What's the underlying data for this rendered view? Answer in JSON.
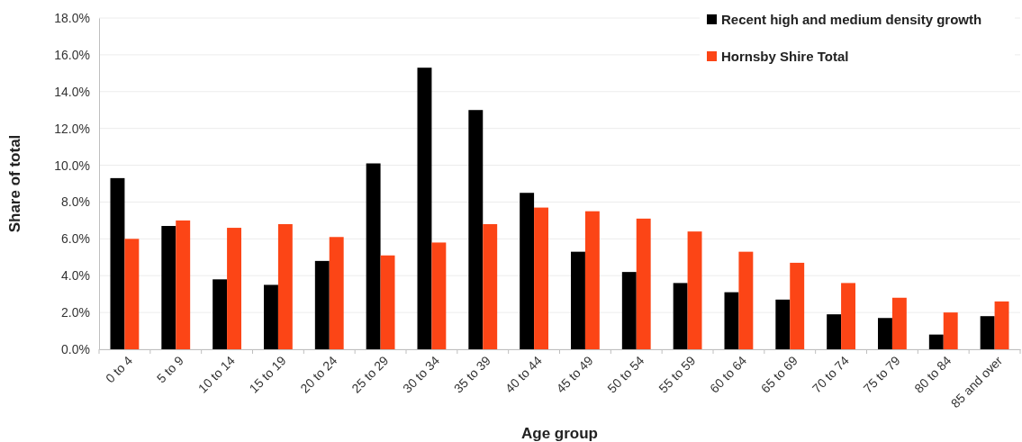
{
  "chart_data": {
    "type": "bar",
    "xlabel": "Age group",
    "ylabel": "Share of total",
    "categories": [
      "0 to 4",
      "5 to 9",
      "10 to 14",
      "15 to 19",
      "20 to 24",
      "25 to 29",
      "30 to 34",
      "35 to 39",
      "40 to 44",
      "45 to 49",
      "50 to 54",
      "55 to 59",
      "60 to 64",
      "65 to 69",
      "70 to 74",
      "75 to 79",
      "80 to 84",
      "85 and over"
    ],
    "series": [
      {
        "name": "Recent high and medium density growth",
        "color": "#000000",
        "values": [
          9.3,
          6.7,
          3.8,
          3.5,
          4.8,
          10.1,
          15.3,
          13.0,
          8.5,
          5.3,
          4.2,
          3.6,
          3.1,
          2.7,
          1.9,
          1.7,
          0.8,
          1.8
        ]
      },
      {
        "name": "Hornsby Shire Total",
        "color": "#fc4516",
        "values": [
          6.0,
          7.0,
          6.6,
          6.8,
          6.1,
          5.1,
          5.8,
          6.8,
          7.7,
          7.5,
          7.1,
          6.4,
          5.3,
          4.7,
          3.6,
          2.8,
          2.0,
          2.6
        ]
      }
    ],
    "ylim": [
      0,
      18
    ],
    "yticks": [
      {
        "value": 0,
        "label": "0.0%"
      },
      {
        "value": 2,
        "label": "2.0%"
      },
      {
        "value": 4,
        "label": "4.0%"
      },
      {
        "value": 6,
        "label": "6.0%"
      },
      {
        "value": 8,
        "label": "8.0%"
      },
      {
        "value": 10,
        "label": "10.0%"
      },
      {
        "value": 12,
        "label": "12.0%"
      },
      {
        "value": 14,
        "label": "14.0%"
      },
      {
        "value": 16,
        "label": "16.0%"
      },
      {
        "value": 18,
        "label": "18.0%"
      }
    ],
    "grid": "y",
    "legend": "top right"
  }
}
